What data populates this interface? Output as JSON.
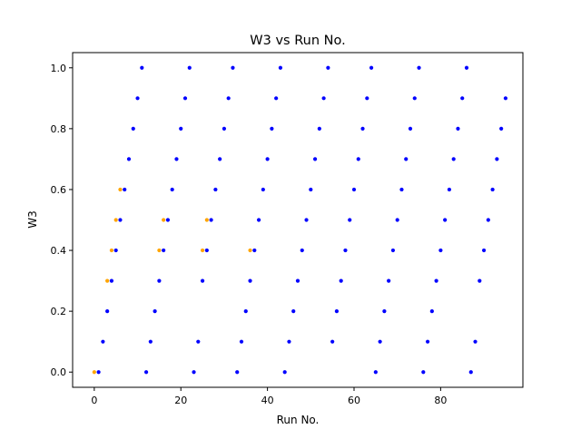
{
  "chart_data": {
    "type": "scatter",
    "title": "W3 vs Run No.",
    "xlabel": "Run No.",
    "ylabel": "W3",
    "xlim": [
      -5,
      99
    ],
    "ylim": [
      -0.05,
      1.05
    ],
    "xticks": [
      0,
      20,
      40,
      60,
      80
    ],
    "yticks": [
      0.0,
      0.2,
      0.4,
      0.6,
      0.8,
      1.0
    ],
    "xtick_labels": [
      "0",
      "20",
      "40",
      "60",
      "80"
    ],
    "ytick_labels": [
      "0.0",
      "0.2",
      "0.4",
      "0.6",
      "0.8",
      "1.0"
    ],
    "grid": false,
    "series": [
      {
        "color": "#0000ff",
        "points": [
          [
            1,
            0
          ],
          [
            2,
            0.1
          ],
          [
            3,
            0.2
          ],
          [
            4,
            0.3
          ],
          [
            5,
            0.4
          ],
          [
            6,
            0.5
          ],
          [
            7,
            0.6
          ],
          [
            8,
            0.7
          ],
          [
            9,
            0.8
          ],
          [
            10,
            0.9
          ],
          [
            11,
            1.0
          ],
          [
            12,
            0
          ],
          [
            13,
            0.1
          ],
          [
            14,
            0.2
          ],
          [
            15,
            0.3
          ],
          [
            16,
            0.4
          ],
          [
            17,
            0.5
          ],
          [
            18,
            0.6
          ],
          [
            19,
            0.7
          ],
          [
            20,
            0.8
          ],
          [
            21,
            0.9
          ],
          [
            22,
            1.0
          ],
          [
            23,
            0
          ],
          [
            24,
            0.1
          ],
          [
            25,
            0.3
          ],
          [
            26,
            0.4
          ],
          [
            27,
            0.5
          ],
          [
            28,
            0.6
          ],
          [
            29,
            0.7
          ],
          [
            30,
            0.8
          ],
          [
            31,
            0.9
          ],
          [
            32,
            1.0
          ],
          [
            33,
            0
          ],
          [
            34,
            0.1
          ],
          [
            35,
            0.2
          ],
          [
            36,
            0.3
          ],
          [
            37,
            0.4
          ],
          [
            38,
            0.5
          ],
          [
            39,
            0.6
          ],
          [
            40,
            0.7
          ],
          [
            41,
            0.8
          ],
          [
            42,
            0.9
          ],
          [
            43,
            1.0
          ],
          [
            44,
            0
          ],
          [
            45,
            0.1
          ],
          [
            46,
            0.2
          ],
          [
            47,
            0.3
          ],
          [
            48,
            0.4
          ],
          [
            49,
            0.5
          ],
          [
            50,
            0.6
          ],
          [
            51,
            0.7
          ],
          [
            52,
            0.8
          ],
          [
            53,
            0.9
          ],
          [
            54,
            1.0
          ],
          [
            55,
            0.1
          ],
          [
            56,
            0.2
          ],
          [
            57,
            0.3
          ],
          [
            58,
            0.4
          ],
          [
            59,
            0.5
          ],
          [
            60,
            0.6
          ],
          [
            61,
            0.7
          ],
          [
            62,
            0.8
          ],
          [
            63,
            0.9
          ],
          [
            64,
            1.0
          ],
          [
            65,
            0
          ],
          [
            66,
            0.1
          ],
          [
            67,
            0.2
          ],
          [
            68,
            0.3
          ],
          [
            69,
            0.4
          ],
          [
            70,
            0.5
          ],
          [
            71,
            0.6
          ],
          [
            72,
            0.7
          ],
          [
            73,
            0.8
          ],
          [
            74,
            0.9
          ],
          [
            75,
            1.0
          ],
          [
            76,
            0
          ],
          [
            77,
            0.1
          ],
          [
            78,
            0.2
          ],
          [
            79,
            0.3
          ],
          [
            80,
            0.4
          ],
          [
            81,
            0.5
          ],
          [
            82,
            0.6
          ],
          [
            83,
            0.7
          ],
          [
            84,
            0.8
          ],
          [
            85,
            0.9
          ],
          [
            86,
            1.0
          ],
          [
            87,
            0
          ],
          [
            88,
            0.1
          ],
          [
            89,
            0.3
          ],
          [
            90,
            0.4
          ],
          [
            91,
            0.5
          ],
          [
            92,
            0.6
          ],
          [
            93,
            0.7
          ],
          [
            94,
            0.8
          ],
          [
            95,
            0.9
          ]
        ]
      },
      {
        "color": "#ffa500",
        "points": [
          [
            0,
            0
          ],
          [
            3,
            0.3
          ],
          [
            4,
            0.4
          ],
          [
            5,
            0.5
          ],
          [
            6,
            0.6
          ],
          [
            15,
            0.4
          ],
          [
            16,
            0.5
          ],
          [
            25,
            0.4
          ],
          [
            26,
            0.5
          ],
          [
            36,
            0.4
          ]
        ]
      }
    ]
  }
}
